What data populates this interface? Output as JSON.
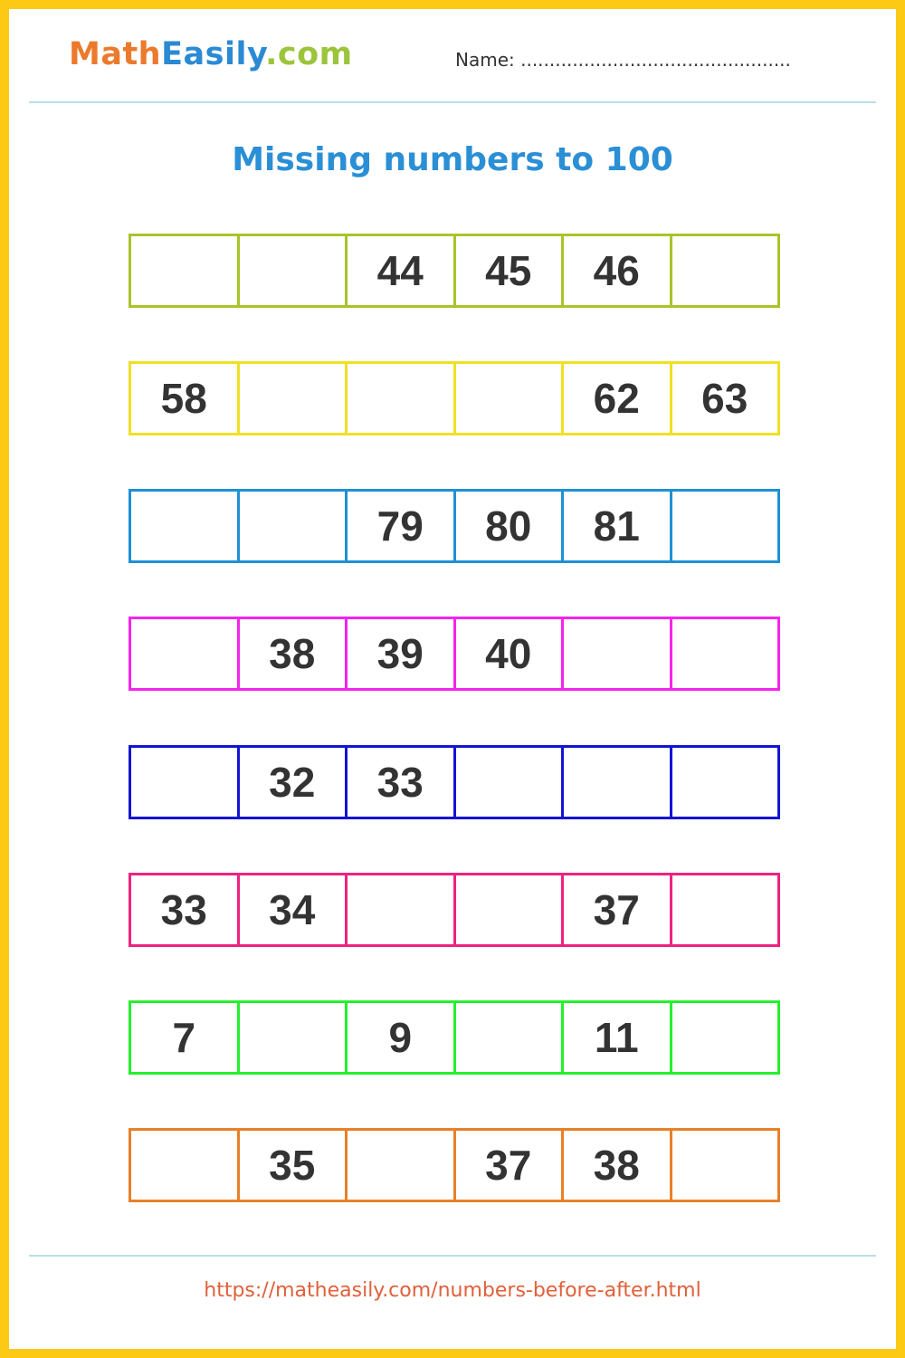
{
  "header": {
    "logo": {
      "part1": "Math",
      "part2": "Easily",
      "part3": ".com"
    },
    "name_label": "Name: ..............................................."
  },
  "title": "Missing numbers to 100",
  "rows": [
    {
      "color": "#a8c42a",
      "cells": [
        "",
        "",
        "44",
        "45",
        "46",
        ""
      ]
    },
    {
      "color": "#f0e024",
      "cells": [
        "58",
        "",
        "",
        "",
        "62",
        "63"
      ]
    },
    {
      "color": "#1e90d4",
      "cells": [
        "",
        "",
        "79",
        "80",
        "81",
        ""
      ]
    },
    {
      "color": "#f424ec",
      "cells": [
        "",
        "38",
        "39",
        "40",
        "",
        ""
      ]
    },
    {
      "color": "#1414d4",
      "cells": [
        "",
        "32",
        "33",
        "",
        "",
        ""
      ]
    },
    {
      "color": "#ee2280",
      "cells": [
        "33",
        "34",
        "",
        "",
        "37",
        ""
      ]
    },
    {
      "color": "#24f02c",
      "cells": [
        "7",
        "",
        "9",
        "",
        "11",
        ""
      ]
    },
    {
      "color": "#e8802a",
      "cells": [
        "",
        "35",
        "",
        "37",
        "38",
        ""
      ]
    }
  ],
  "footer": {
    "url": "https://matheasily.com/numbers-before-after.html"
  }
}
